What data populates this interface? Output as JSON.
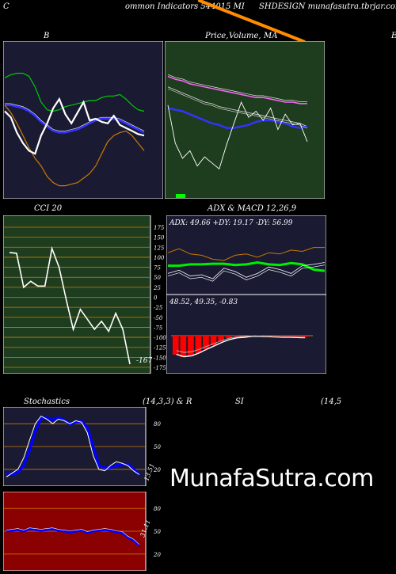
{
  "header": {
    "left": "C",
    "mid": "ommon  Indicators 544015 MI",
    "right": "SHDESIGN  munafasutra.tbrjar.com"
  },
  "panels": {
    "bollinger": {
      "title": "B"
    },
    "price": {
      "title_a": "Price,",
      "title_b": "Volume,",
      "title_c": "MA",
      "edge_letter": "E"
    },
    "cci": {
      "title": "CCI 20",
      "ticks": [
        "175",
        "150",
        "125",
        "100",
        "75",
        "50",
        "25",
        "0",
        "-25",
        "-50",
        "-75",
        "-100",
        "-125",
        "-150",
        "-175"
      ],
      "last_label": "-167"
    },
    "adx": {
      "title": "ADX  & MACD 12,26,9",
      "readout": "ADX: 49.66  +DY: 19.17 -DY: 56.99"
    },
    "macd": {
      "readout": "48.52,  49.35,  -0.83"
    },
    "stoch": {
      "title_a": "Stochastics",
      "title_b": "(14,3,3) & R",
      "title_c": "SI",
      "title_d": "(14,5",
      "ticks": [
        "80",
        "50",
        "20"
      ],
      "last_label": "13.51"
    },
    "rsi": {
      "ticks": [
        "80",
        "50",
        "20"
      ],
      "last_label": "31.11"
    }
  },
  "watermark": "MunafaSutra.com",
  "colors": {
    "background": "#000000",
    "bollinger_bg": "#1a1a33",
    "price_bg": "#1e3d1e",
    "cci_bg": "#1e3d1e",
    "indicator_bg": "#1a1a33",
    "rsi_bg": "#8b0000",
    "ma_orange": "#ff8c00",
    "upper_band": "#00cc00",
    "lower_band": "#cc7a00",
    "mid_band": "#3333ff",
    "macd_hist": "#ff0000",
    "adx_green": "#00ee00"
  },
  "chart_data": [
    {
      "type": "line",
      "title": "B",
      "series": [
        {
          "values": [
            0.78,
            0.8,
            0.81,
            0.81,
            0.79,
            0.72,
            0.62,
            0.57,
            0.56,
            0.57,
            0.59,
            0.6,
            0.61,
            0.62,
            0.63,
            0.63,
            0.65,
            0.66,
            0.66,
            0.67,
            0.64,
            0.6,
            0.57,
            0.56
          ]
        },
        {
          "values": [
            0.6,
            0.6,
            0.59,
            0.58,
            0.56,
            0.53,
            0.49,
            0.46,
            0.43,
            0.42,
            0.42,
            0.43,
            0.44,
            0.46,
            0.48,
            0.5,
            0.51,
            0.51,
            0.51,
            0.5,
            0.48,
            0.46,
            0.44,
            0.42
          ]
        },
        {
          "values": [
            0.6,
            0.55,
            0.48,
            0.4,
            0.32,
            0.25,
            0.2,
            0.13,
            0.09,
            0.07,
            0.07,
            0.08,
            0.09,
            0.12,
            0.15,
            0.2,
            0.28,
            0.36,
            0.4,
            0.42,
            0.43,
            0.4,
            0.35,
            0.3
          ]
        },
        {
          "values": [
            0.56,
            0.52,
            0.42,
            0.35,
            0.3,
            0.28,
            0.4,
            0.48,
            0.58,
            0.64,
            0.54,
            0.48,
            0.55,
            0.62,
            0.5,
            0.51,
            0.49,
            0.48,
            0.53,
            0.47,
            0.45,
            0.43,
            0.41,
            0.4
          ]
        }
      ]
    },
    {
      "type": "line",
      "title": "Price, Volume, MA",
      "series": [
        {
          "values": [
            0.79,
            0.77,
            0.76,
            0.74,
            0.73,
            0.72,
            0.71,
            0.7,
            0.69,
            0.68,
            0.67,
            0.66,
            0.65,
            0.65,
            0.64,
            0.63,
            0.62,
            0.62,
            0.61,
            0.61
          ]
        },
        {
          "values": [
            0.72,
            0.7,
            0.68,
            0.66,
            0.64,
            0.62,
            0.61,
            0.59,
            0.58,
            0.57,
            0.56,
            0.55,
            0.54,
            0.53,
            0.52,
            0.51,
            0.5,
            0.49,
            0.48,
            0.46
          ]
        },
        {
          "values": [
            0.58,
            0.57,
            0.56,
            0.54,
            0.52,
            0.5,
            0.48,
            0.47,
            0.45,
            0.45,
            0.46,
            0.47,
            0.49,
            0.5,
            0.5,
            0.49,
            0.48,
            0.46,
            0.45,
            0.46
          ]
        },
        {
          "values": [
            0.6,
            0.35,
            0.25,
            0.3,
            0.2,
            0.26,
            0.22,
            0.18,
            0.34,
            0.48,
            0.62,
            0.52,
            0.56,
            0.5,
            0.58,
            0.44,
            0.54,
            0.47,
            0.48,
            0.36
          ]
        }
      ]
    },
    {
      "type": "line",
      "title": "CCI 20",
      "ylim": [
        -175,
        175
      ],
      "x": [
        0,
        1,
        2,
        3,
        4,
        5,
        6,
        7,
        8,
        9,
        10,
        11,
        12,
        13,
        14,
        15,
        16,
        17
      ],
      "series": [
        {
          "values": [
            112,
            110,
            25,
            40,
            28,
            28,
            122,
            75,
            -5,
            -80,
            -30,
            -55,
            -80,
            -60,
            -85,
            -40,
            -80,
            -167
          ]
        }
      ]
    },
    {
      "type": "line",
      "title": "ADX & MACD 12,26,9",
      "series": [
        {
          "name": "ADX",
          "values": [
            0.42,
            0.42,
            0.44,
            0.44,
            0.45,
            0.45,
            0.43,
            0.44,
            0.47,
            0.44,
            0.43,
            0.46,
            0.44,
            0.36,
            0.34
          ]
        },
        {
          "name": "+DY",
          "values": [
            0.3,
            0.35,
            0.26,
            0.28,
            0.22,
            0.38,
            0.33,
            0.24,
            0.3,
            0.4,
            0.36,
            0.3,
            0.42,
            0.44,
            0.47
          ]
        },
        {
          "name": "-DY",
          "values": [
            0.62,
            0.68,
            0.6,
            0.58,
            0.52,
            0.5,
            0.58,
            0.6,
            0.55,
            0.62,
            0.6,
            0.66,
            0.64,
            0.7,
            0.7
          ]
        }
      ]
    },
    {
      "type": "bar",
      "title": "MACD",
      "values": [
        -0.6,
        -0.68,
        -0.65,
        -0.55,
        -0.42,
        -0.3,
        -0.18,
        -0.08,
        -0.02,
        0.0,
        0.01,
        0.01,
        0.0,
        -0.01,
        -0.02,
        -0.02,
        -0.03,
        -0.04
      ]
    },
    {
      "type": "line",
      "title": "Stochastics (14,3,3)",
      "ylim": [
        0,
        100
      ],
      "series": [
        {
          "values": [
            15,
            13,
            16,
            25,
            45,
            70,
            87,
            88,
            85,
            88,
            85,
            80,
            82,
            83,
            75,
            50,
            25,
            22,
            22,
            25,
            26,
            27,
            20,
            13
          ]
        },
        {
          "values": [
            10,
            15,
            20,
            35,
            58,
            80,
            90,
            86,
            80,
            86,
            84,
            80,
            84,
            82,
            68,
            38,
            20,
            18,
            25,
            30,
            28,
            25,
            18,
            13
          ]
        }
      ]
    },
    {
      "type": "line",
      "title": "RSI (14)",
      "ylim": [
        0,
        100
      ],
      "series": [
        {
          "values": [
            50,
            51,
            52,
            50,
            53,
            52,
            51,
            52,
            53,
            51,
            50,
            49,
            50,
            51,
            48,
            50,
            51,
            52,
            51,
            49,
            48,
            42,
            38,
            31
          ]
        }
      ]
    }
  ]
}
